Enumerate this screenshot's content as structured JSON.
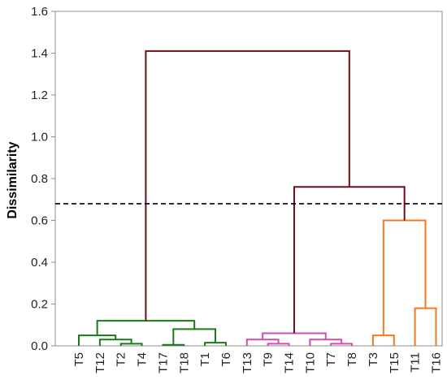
{
  "chart_data": {
    "type": "dendrogram",
    "ylabel": "Dissimilarity",
    "xlabel": "",
    "title": "",
    "ylim": [
      0,
      1.6
    ],
    "y_ticks": [
      "0.0",
      "0.2",
      "0.4",
      "0.6",
      "0.8",
      "1.0",
      "1.2",
      "1.4",
      "1.6"
    ],
    "leaves": [
      "T5",
      "T12",
      "T2",
      "T4",
      "T17",
      "T18",
      "T1",
      "T6",
      "T13",
      "T9",
      "T14",
      "T10",
      "T7",
      "T8",
      "T3",
      "T15",
      "T11",
      "T16"
    ],
    "cut_height": 0.68,
    "grid": false,
    "colors": {
      "cluster_1": "#1a7a1a",
      "cluster_2": "#d44ab0",
      "cluster_3": "#f07b24",
      "upper": "#6b0f1a",
      "cut_line": "#000000"
    },
    "links": [
      {
        "left": "T2",
        "right": "T4",
        "height": 0.01,
        "color": "cluster_1"
      },
      {
        "left": "T17",
        "right": "T18",
        "height": 0.005,
        "color": "cluster_1"
      },
      {
        "left": "T1",
        "right": "T6",
        "height": 0.015,
        "color": "cluster_1"
      },
      {
        "left": "T12",
        "right": "T2+T4",
        "height": 0.03,
        "color": "cluster_1"
      },
      {
        "left": "T5",
        "right": "T12+T2+T4",
        "height": 0.05,
        "color": "cluster_1"
      },
      {
        "left": "T17+T18",
        "right": "T1+T6",
        "height": 0.08,
        "color": "cluster_1"
      },
      {
        "left": "T5..T4",
        "right": "T17..T6",
        "height": 0.12,
        "color": "cluster_1"
      },
      {
        "left": "T9",
        "right": "T14",
        "height": 0.01,
        "color": "cluster_2"
      },
      {
        "left": "T13",
        "right": "T9+T14",
        "height": 0.03,
        "color": "cluster_2"
      },
      {
        "left": "T7",
        "right": "T8",
        "height": 0.01,
        "color": "cluster_2"
      },
      {
        "left": "T10",
        "right": "T7+T8",
        "height": 0.03,
        "color": "cluster_2"
      },
      {
        "left": "T13..T14",
        "right": "T10..T8",
        "height": 0.06,
        "color": "cluster_2"
      },
      {
        "left": "T3",
        "right": "T15",
        "height": 0.05,
        "color": "cluster_3"
      },
      {
        "left": "T11",
        "right": "T16",
        "height": 0.18,
        "color": "cluster_3"
      },
      {
        "left": "T3+T15",
        "right": "T11+T16",
        "height": 0.6,
        "color": "cluster_3"
      },
      {
        "left": "T13..T8",
        "right": "T3..T16",
        "height": 0.76,
        "color": "upper"
      },
      {
        "left": "T5..T6",
        "right": "T13..T16",
        "height": 1.41,
        "color": "upper"
      }
    ]
  }
}
